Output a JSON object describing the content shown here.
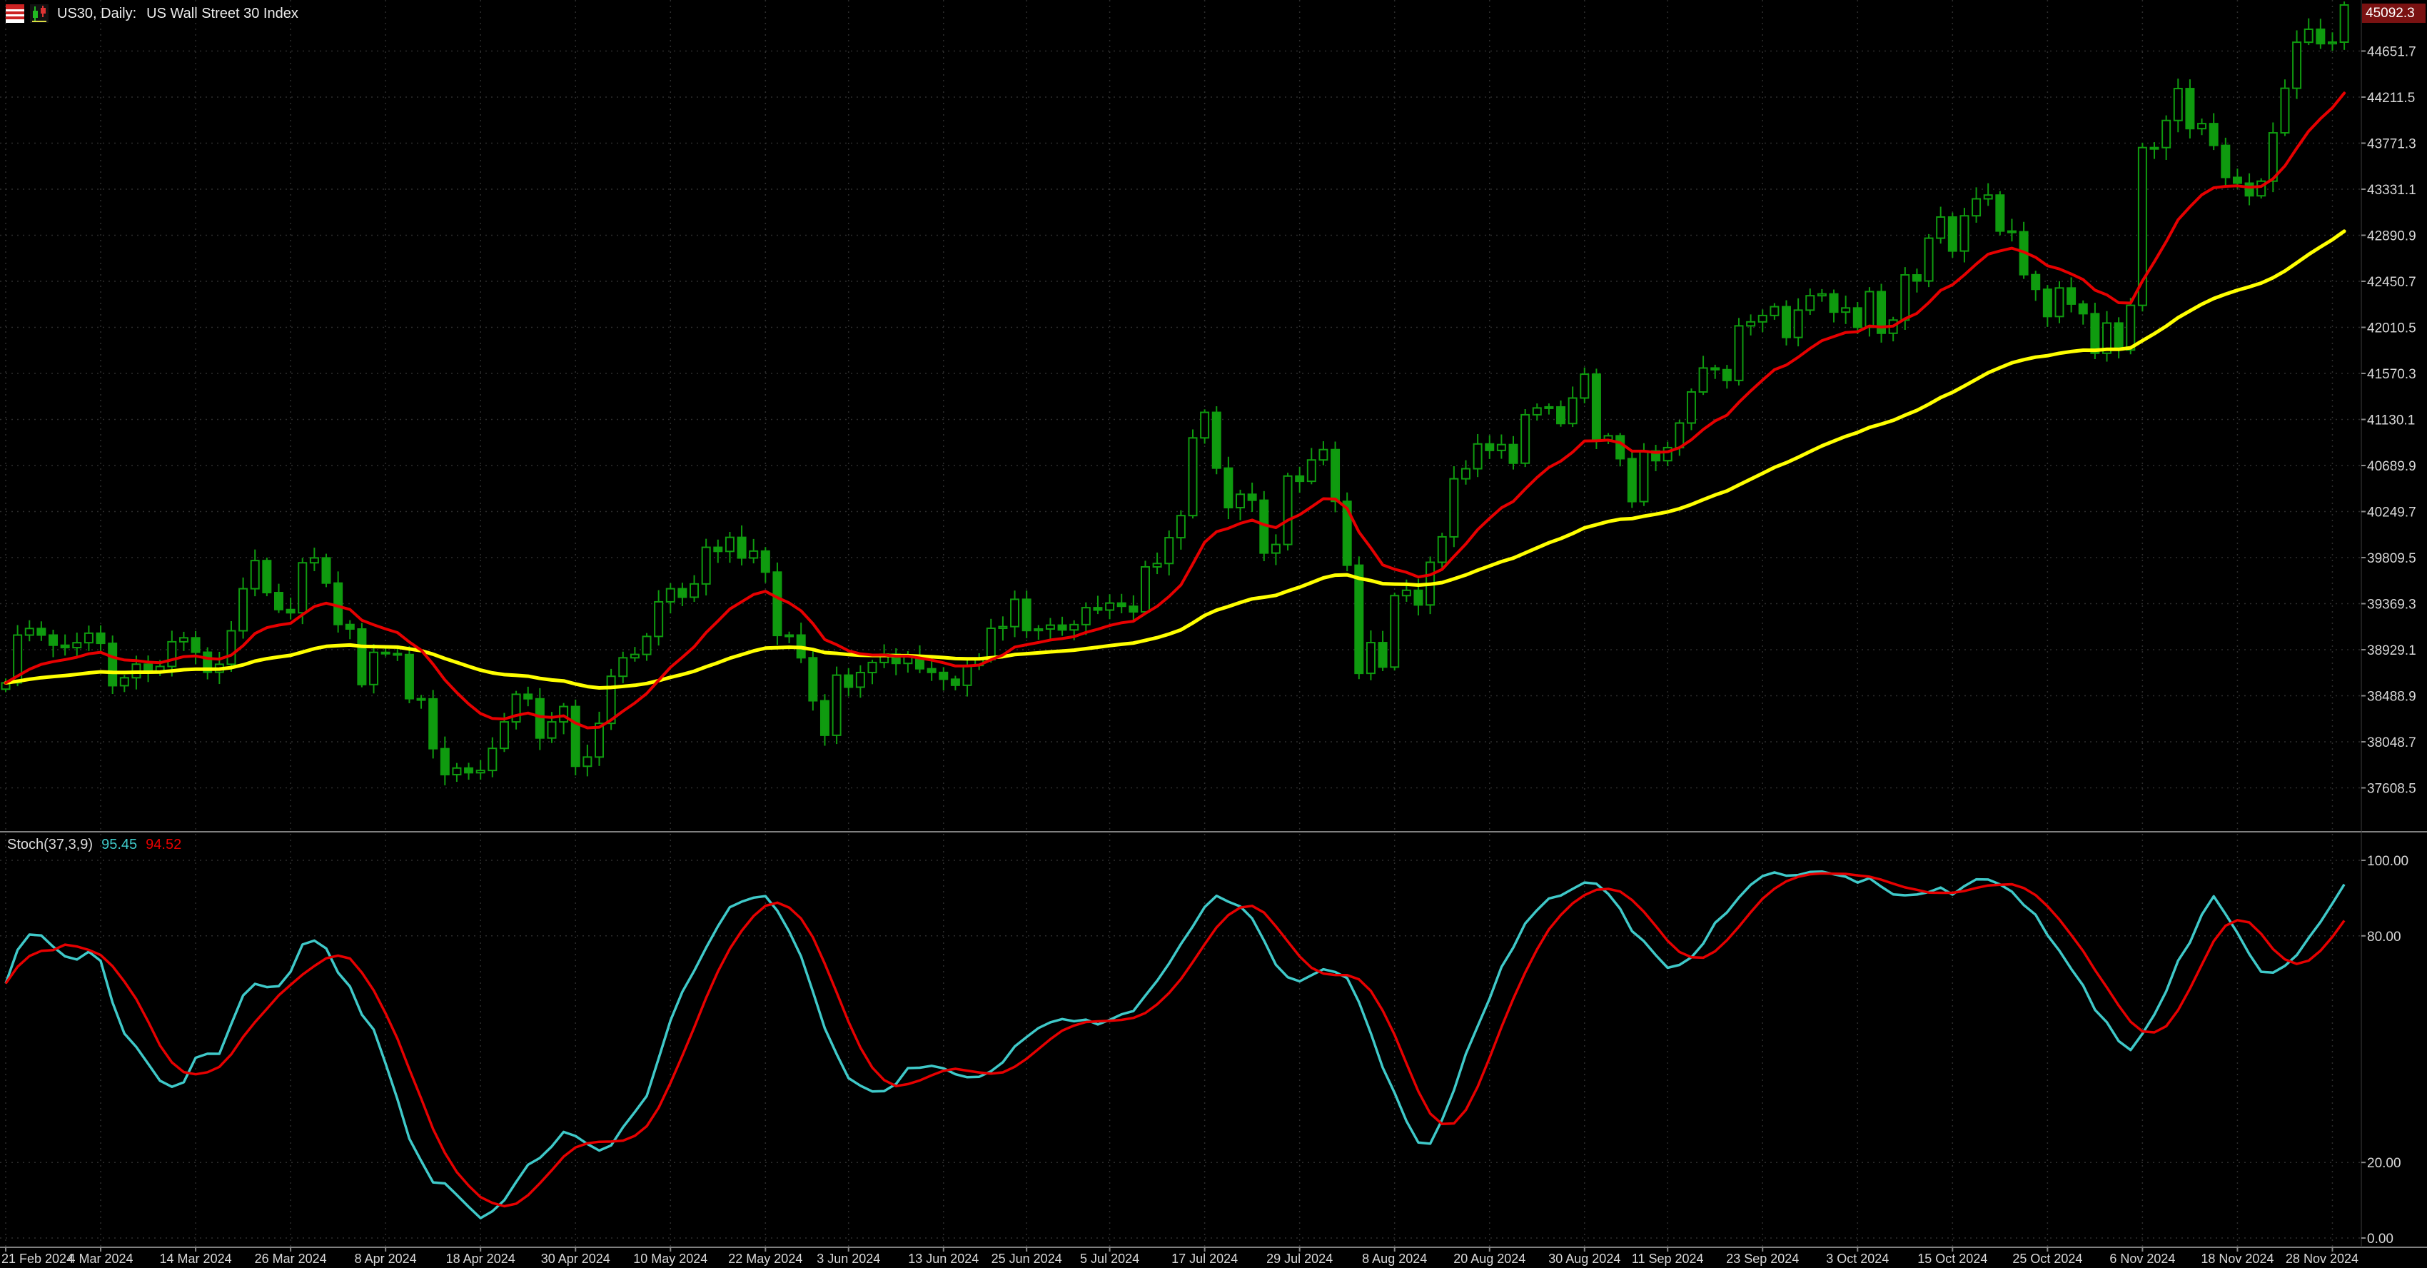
{
  "header": {
    "symbol_timeframe": "US30, Daily:",
    "description": "US Wall Street 30 Index"
  },
  "price_axis": {
    "current_price": "45092.3",
    "ticks": [
      "44651.7",
      "44211.5",
      "43771.3",
      "43331.1",
      "42890.9",
      "42450.7",
      "42010.5",
      "41570.3",
      "41130.1",
      "40689.9",
      "40249.7",
      "39809.5",
      "39369.3",
      "38929.1",
      "38488.9",
      "38048.7",
      "37608.5"
    ]
  },
  "time_axis": {
    "ticks": [
      {
        "i": 0,
        "label": "21 Feb 2024"
      },
      {
        "i": 8,
        "label": "4 Mar 2024"
      },
      {
        "i": 16,
        "label": "14 Mar 2024"
      },
      {
        "i": 24,
        "label": "26 Mar 2024"
      },
      {
        "i": 32,
        "label": "8 Apr 2024"
      },
      {
        "i": 40,
        "label": "18 Apr 2024"
      },
      {
        "i": 48,
        "label": "30 Apr 2024"
      },
      {
        "i": 56,
        "label": "10 May 2024"
      },
      {
        "i": 64,
        "label": "22 May 2024"
      },
      {
        "i": 71,
        "label": "3 Jun 2024"
      },
      {
        "i": 79,
        "label": "13 Jun 2024"
      },
      {
        "i": 86,
        "label": "25 Jun 2024"
      },
      {
        "i": 93,
        "label": "5 Jul 2024"
      },
      {
        "i": 101,
        "label": "17 Jul 2024"
      },
      {
        "i": 109,
        "label": "29 Jul 2024"
      },
      {
        "i": 117,
        "label": "8 Aug 2024"
      },
      {
        "i": 125,
        "label": "20 Aug 2024"
      },
      {
        "i": 133,
        "label": "30 Aug 2024"
      },
      {
        "i": 140,
        "label": "11 Sep 2024"
      },
      {
        "i": 148,
        "label": "23 Sep 2024"
      },
      {
        "i": 156,
        "label": "3 Oct 2024"
      },
      {
        "i": 164,
        "label": "15 Oct 2024"
      },
      {
        "i": 172,
        "label": "25 Oct 2024"
      },
      {
        "i": 180,
        "label": "6 Nov 2024"
      },
      {
        "i": 188,
        "label": "18 Nov 2024"
      },
      {
        "i": 196,
        "label": "28 Nov 2024"
      }
    ]
  },
  "stoch": {
    "name": "Stoch(37,3,9)",
    "main_value": "95.45",
    "signal_value": "94.52",
    "ticks": [
      {
        "v": 100,
        "label": "100.00"
      },
      {
        "v": 80,
        "label": "80.00"
      },
      {
        "v": 20,
        "label": "20.00"
      },
      {
        "v": 0,
        "label": "0.00"
      }
    ]
  },
  "colors": {
    "background": "#000000",
    "grid": "#2d2d2d",
    "candle": "#0f9b0f",
    "candle_bull_fill": "#000000",
    "ma_fast": "#e60000",
    "ma_slow": "#ffff00",
    "stoch_main": "#3fc9c9",
    "stoch_signal": "#e60000",
    "axis_text": "#d8d8d8",
    "separator": "#808080",
    "price_box_bg": "#7a1212",
    "price_box_text": "#ffffff"
  },
  "chart_data": {
    "type": "candlestick",
    "symbol": "US30",
    "timeframe": "Daily",
    "title": "US Wall Street 30 Index",
    "x_start": "21 Feb 2024",
    "x_end": "28 Nov 2024",
    "ylim": [
      37200,
      45140
    ],
    "last_price": 45092.3,
    "closes": [
      38612,
      39069,
      39132,
      39069,
      38972,
      38949,
      38996,
      39087,
      38990,
      38585,
      38661,
      38791,
      38722,
      38769,
      39005,
      39043,
      38905,
      38714,
      38790,
      39110,
      39512,
      39781,
      39475,
      39313,
      39282,
      39760,
      39807,
      39566,
      39170,
      39127,
      38596,
      38904,
      38892,
      38883,
      38461,
      38459,
      37983,
      37735,
      37798,
      37753,
      37775,
      37986,
      38239,
      38503,
      38460,
      38085,
      38239,
      38386,
      37815,
      37903,
      38225,
      38675,
      38852,
      38884,
      39056,
      39387,
      39512,
      39431,
      39558,
      39908,
      39869,
      40003,
      39806,
      39872,
      39671,
      39065,
      39069,
      38852,
      38441,
      38111,
      38686,
      38571,
      38711,
      38807,
      38886,
      38798,
      38868,
      38747,
      38712,
      38647,
      38589,
      38778,
      38834,
      39134,
      39150,
      39411,
      39112,
      39127,
      39164,
      39118,
      39169,
      39331,
      39308,
      39375,
      39344,
      39291,
      39721,
      39753,
      40000,
      40211,
      40954,
      41198,
      40665,
      40287,
      40415,
      40358,
      39853,
      39935,
      40589,
      40539,
      40743,
      40842,
      40347,
      39737,
      38703,
      38997,
      38763,
      39446,
      39497,
      39357,
      39765,
      40008,
      40563,
      40659,
      40896,
      40834,
      40890,
      40712,
      41175,
      41240,
      41250,
      41091,
      41335,
      41563,
      40936,
      40974,
      40755,
      40345,
      40829,
      40736,
      40861,
      41096,
      41393,
      41622,
      41606,
      41503,
      42025,
      42063,
      42124,
      42208,
      41914,
      42175,
      42313,
      42330,
      42156,
      42196,
      42011,
      42352,
      41954,
      42080,
      42512,
      42454,
      42863,
      43065,
      42740,
      43077,
      43239,
      43275,
      42931,
      42924,
      42514,
      42374,
      42114,
      42387,
      42233,
      42141,
      41763,
      42052,
      41794,
      42221,
      43729,
      43729,
      43988,
      44293,
      43910,
      43958,
      43750,
      43444,
      43389,
      43268,
      43408,
      43870,
      44296,
      44736,
      44860,
      44722,
      44737,
      45092
    ],
    "overlays": [
      {
        "name": "moving-average-fast",
        "color": "#e60000"
      },
      {
        "name": "moving-average-slow",
        "color": "#ffff00"
      }
    ],
    "indicator": {
      "type": "line",
      "name": "Stochastic",
      "params": [
        37,
        3,
        9
      ],
      "last_main": 95.45,
      "last_signal": 94.52,
      "ylim": [
        0,
        100
      ],
      "levels": [
        80,
        20
      ],
      "series": [
        {
          "name": "main",
          "color": "#3fc9c9"
        },
        {
          "name": "signal",
          "color": "#e60000"
        }
      ]
    }
  }
}
